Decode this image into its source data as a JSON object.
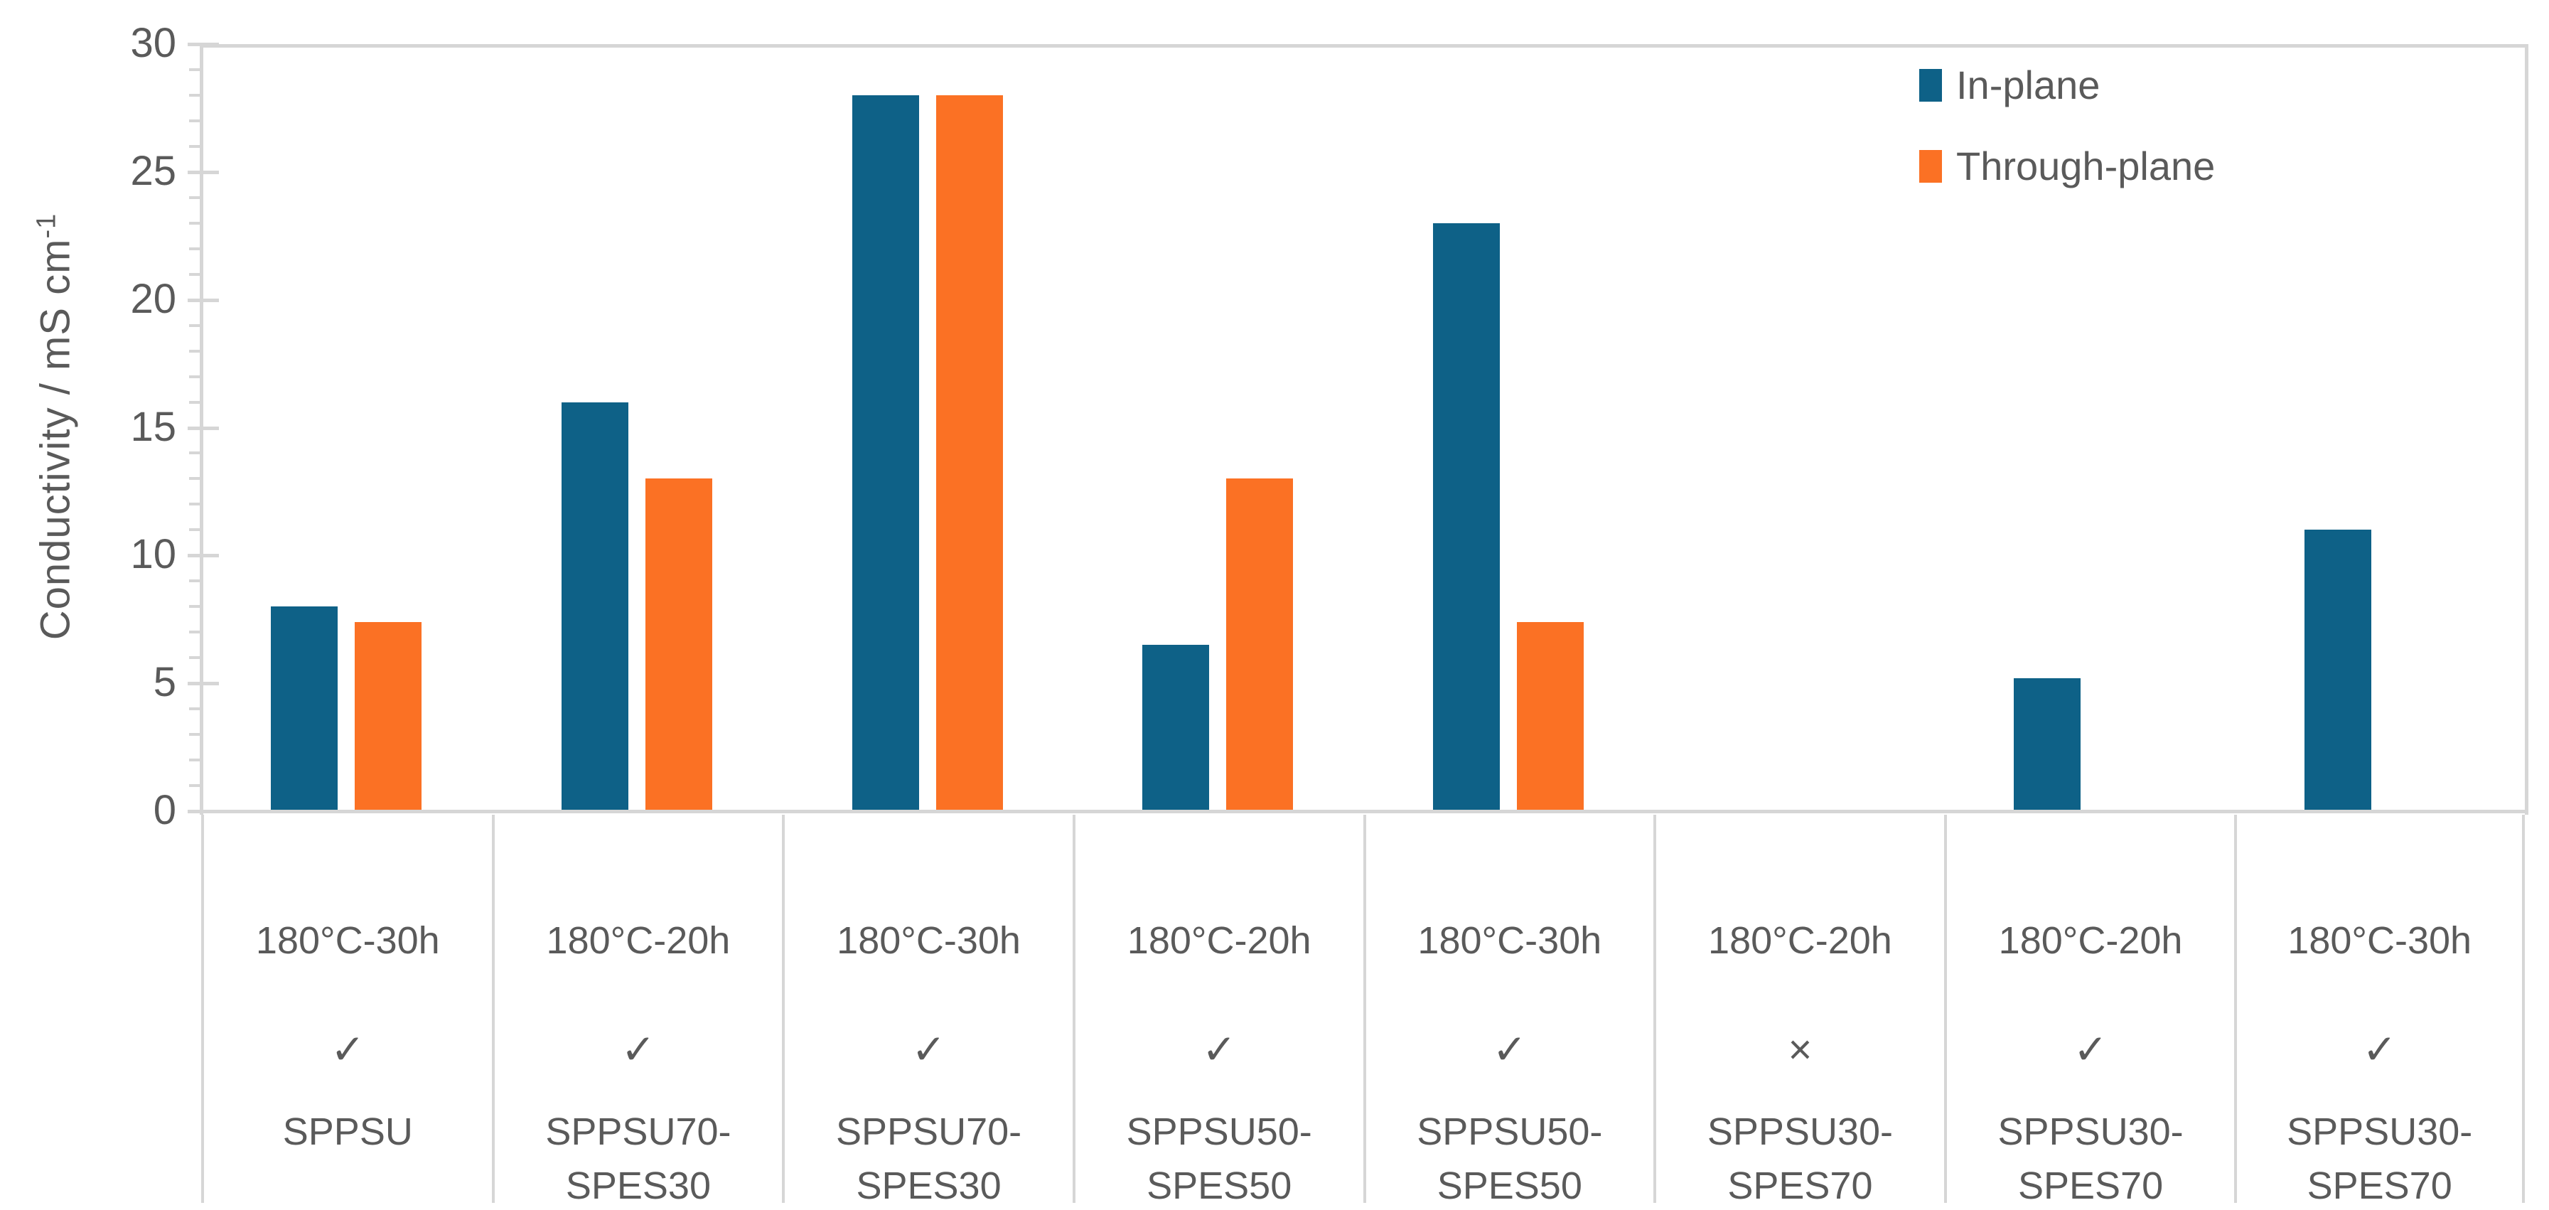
{
  "chart_data": {
    "type": "bar",
    "title": "",
    "ylabel": "Conductivity / mS cm⁻¹",
    "ylabel_main": "Conductivity / mS cm",
    "ylabel_sup": "-1",
    "ylim": [
      0,
      30
    ],
    "ymajor_ticks": [
      0,
      5,
      10,
      15,
      20,
      25,
      30
    ],
    "yminor_step": 1,
    "grid": false,
    "legend_position": "top-right",
    "axis_color": "#D6D6D6",
    "text_color": "#5A5A5A",
    "series": [
      {
        "name": "In-plane",
        "color": "#0E6187",
        "values": [
          8,
          16,
          28,
          6.5,
          23,
          null,
          5.2,
          11
        ]
      },
      {
        "name": "Through-plane",
        "color": "#FB7124",
        "values": [
          7.4,
          13,
          28,
          13,
          7.4,
          null,
          null,
          null
        ]
      }
    ],
    "categories": [
      {
        "treatment": "180°C-30h",
        "mark": "✓",
        "sample_line1": "SPPSU",
        "sample_line2": ""
      },
      {
        "treatment": "180°C-20h",
        "mark": "✓",
        "sample_line1": "SPPSU70-",
        "sample_line2": "SPES30"
      },
      {
        "treatment": "180°C-30h",
        "mark": "✓",
        "sample_line1": "SPPSU70-",
        "sample_line2": "SPES30"
      },
      {
        "treatment": "180°C-20h",
        "mark": "✓",
        "sample_line1": "SPPSU50-",
        "sample_line2": "SPES50"
      },
      {
        "treatment": "180°C-30h",
        "mark": "✓",
        "sample_line1": "SPPSU50-",
        "sample_line2": "SPES50"
      },
      {
        "treatment": "180°C-20h",
        "mark": "×",
        "sample_line1": "SPPSU30-",
        "sample_line2": "SPES70"
      },
      {
        "treatment": "180°C-20h",
        "mark": "✓",
        "sample_line1": "SPPSU30-",
        "sample_line2": "SPES70"
      },
      {
        "treatment": "180°C-30h",
        "mark": "✓",
        "sample_line1": "SPPSU30-",
        "sample_line2": "SPES70"
      }
    ]
  }
}
